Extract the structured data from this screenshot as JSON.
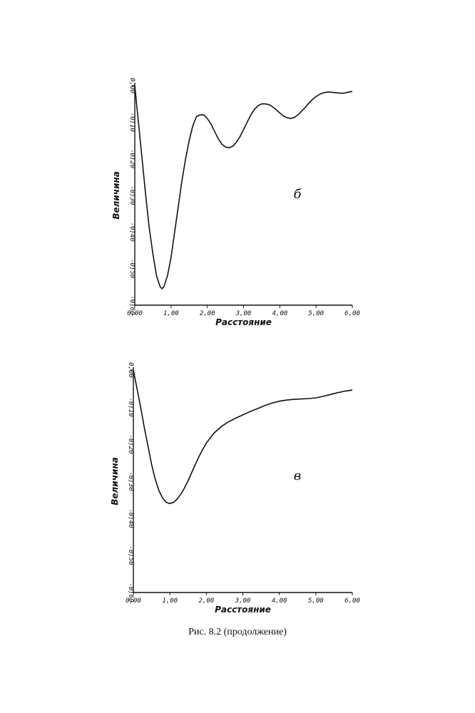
{
  "caption": "Рис. 8.2 (продолжение)",
  "chart_data": [
    {
      "type": "line",
      "panel_label": "б",
      "xlabel": "Расстояние",
      "ylabel": "Величина",
      "xlim": [
        0,
        6
      ],
      "ylim": [
        -0.6,
        0
      ],
      "x_ticks": [
        "0,00",
        "1,00",
        "2,00",
        "3,00",
        "4,00",
        "5,00",
        "6,00"
      ],
      "y_ticks": [
        "0,00",
        "-0,10",
        "-0,20",
        "-0,30",
        "-0,40",
        "-0,50",
        "-0,60"
      ],
      "series": [
        {
          "x": [
            0,
            0.05,
            0.1,
            0.2,
            0.3,
            0.4,
            0.5,
            0.6,
            0.7,
            0.75,
            0.8,
            0.9,
            1.0,
            1.1,
            1.2,
            1.3,
            1.4,
            1.5,
            1.6,
            1.7,
            1.8,
            1.9,
            2.0,
            2.1,
            2.2,
            2.3,
            2.4,
            2.5,
            2.6,
            2.7,
            2.8,
            2.9,
            3.0,
            3.1,
            3.2,
            3.3,
            3.4,
            3.5,
            3.6,
            3.7,
            3.8,
            3.9,
            4.0,
            4.1,
            4.2,
            4.3,
            4.4,
            4.5,
            4.6,
            4.7,
            4.8,
            4.9,
            5.0,
            5.1,
            5.2,
            5.3,
            5.4,
            5.5,
            5.6,
            5.7,
            5.8,
            5.9,
            6.0
          ],
          "values": [
            0,
            -0.05,
            -0.1,
            -0.2,
            -0.3,
            -0.39,
            -0.46,
            -0.52,
            -0.55,
            -0.555,
            -0.55,
            -0.52,
            -0.47,
            -0.4,
            -0.33,
            -0.26,
            -0.2,
            -0.15,
            -0.11,
            -0.085,
            -0.08,
            -0.08,
            -0.09,
            -0.105,
            -0.125,
            -0.145,
            -0.16,
            -0.168,
            -0.17,
            -0.166,
            -0.155,
            -0.14,
            -0.12,
            -0.1,
            -0.08,
            -0.065,
            -0.055,
            -0.05,
            -0.05,
            -0.052,
            -0.058,
            -0.066,
            -0.075,
            -0.083,
            -0.088,
            -0.09,
            -0.087,
            -0.08,
            -0.07,
            -0.06,
            -0.048,
            -0.038,
            -0.03,
            -0.024,
            -0.02,
            -0.018,
            -0.018,
            -0.019,
            -0.02,
            -0.021,
            -0.02,
            -0.018,
            -0.016
          ]
        }
      ]
    },
    {
      "type": "line",
      "panel_label": "в",
      "xlabel": "Расстояние",
      "ylabel": "Величина",
      "xlim": [
        0,
        6
      ],
      "ylim": [
        -0.6,
        0
      ],
      "x_ticks": [
        "0,00",
        "1,00",
        "2,00",
        "3,00",
        "4,00",
        "5,00",
        "6,00"
      ],
      "y_ticks": [
        "0,00",
        "-0,10",
        "-0,20",
        "-0,30",
        "-0,40",
        "-0,50",
        "-0,60"
      ],
      "series": [
        {
          "x": [
            0,
            0.1,
            0.2,
            0.3,
            0.4,
            0.5,
            0.6,
            0.7,
            0.8,
            0.9,
            1.0,
            1.1,
            1.2,
            1.3,
            1.4,
            1.5,
            1.6,
            1.7,
            1.8,
            1.9,
            2.0,
            2.2,
            2.4,
            2.6,
            2.8,
            3.0,
            3.2,
            3.4,
            3.6,
            3.8,
            4.0,
            4.2,
            4.4,
            4.6,
            4.8,
            5.0,
            5.2,
            5.4,
            5.6,
            5.8,
            6.0
          ],
          "values": [
            0,
            -0.05,
            -0.1,
            -0.155,
            -0.205,
            -0.255,
            -0.295,
            -0.325,
            -0.345,
            -0.357,
            -0.36,
            -0.357,
            -0.348,
            -0.335,
            -0.318,
            -0.298,
            -0.276,
            -0.254,
            -0.233,
            -0.214,
            -0.197,
            -0.171,
            -0.153,
            -0.14,
            -0.13,
            -0.121,
            -0.112,
            -0.104,
            -0.096,
            -0.089,
            -0.084,
            -0.081,
            -0.079,
            -0.078,
            -0.077,
            -0.075,
            -0.071,
            -0.066,
            -0.061,
            -0.057,
            -0.054
          ]
        }
      ]
    }
  ]
}
